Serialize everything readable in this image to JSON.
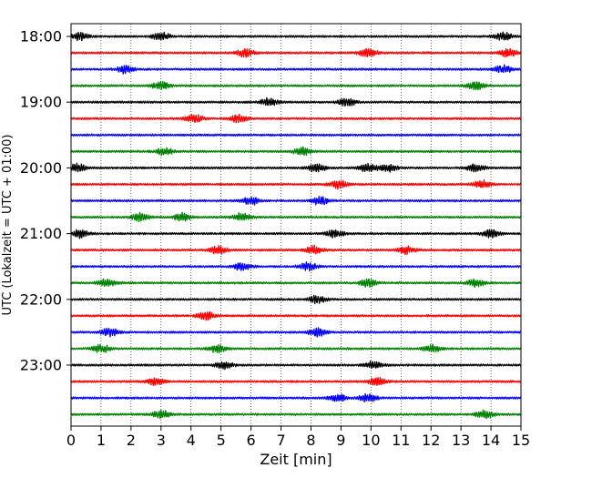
{
  "chart_data": {
    "type": "line",
    "chart_kind": "seismic helicorder (one trace per 15-minute line)",
    "xlabel": "Zeit  [min]",
    "ylabel": "UTC (Lokalzeit = UTC + 01:00)",
    "xlim": [
      0,
      15
    ],
    "x_ticks": [
      "0",
      "1",
      "2",
      "3",
      "4",
      "5",
      "6",
      "7",
      "8",
      "9",
      "10",
      "11",
      "12",
      "13",
      "14",
      "15"
    ],
    "y_tick_labels": [
      "18:00",
      "19:00",
      "20:00",
      "21:00",
      "22:00",
      "23:00"
    ],
    "trace_start_times": [
      "18:00",
      "18:15",
      "18:30",
      "18:45",
      "19:00",
      "19:15",
      "19:30",
      "19:45",
      "20:00",
      "20:15",
      "20:30",
      "20:45",
      "21:00",
      "21:15",
      "21:30",
      "21:45",
      "22:00",
      "22:15",
      "22:30",
      "22:45",
      "23:00",
      "23:15",
      "23:30",
      "23:45"
    ],
    "trace_color_cycle": [
      "#000000",
      "#ff0000",
      "#0000ff",
      "#008000"
    ],
    "vertical_grid": "dotted, every 1 min",
    "horizontal_grid": "none",
    "legend": "none",
    "notable_bursts": [
      {
        "trace": "18:00",
        "minutes": [
          0.3,
          3.0,
          14.4
        ]
      },
      {
        "trace": "18:15",
        "minutes": [
          5.8,
          9.9,
          14.6
        ]
      },
      {
        "trace": "18:30",
        "minutes": [
          1.8,
          14.4
        ]
      },
      {
        "trace": "18:45",
        "minutes": [
          3.0,
          13.5
        ]
      },
      {
        "trace": "19:00",
        "minutes": [
          6.6,
          9.2
        ]
      },
      {
        "trace": "19:15",
        "minutes": [
          4.1,
          5.6
        ]
      },
      {
        "trace": "19:45",
        "minutes": [
          3.1,
          7.7
        ]
      },
      {
        "trace": "20:00",
        "minutes": [
          0.2,
          8.2,
          9.9,
          10.6,
          13.5
        ]
      },
      {
        "trace": "20:15",
        "minutes": [
          8.9,
          13.7
        ]
      },
      {
        "trace": "20:30",
        "minutes": [
          6.0,
          8.3
        ]
      },
      {
        "trace": "20:45",
        "minutes": [
          2.3,
          3.7,
          5.7
        ]
      },
      {
        "trace": "21:00",
        "minutes": [
          0.3,
          8.8,
          14.0
        ]
      },
      {
        "trace": "21:15",
        "minutes": [
          4.9,
          8.1,
          11.2
        ]
      },
      {
        "trace": "21:30",
        "minutes": [
          5.7,
          7.9
        ]
      },
      {
        "trace": "21:45",
        "minutes": [
          1.2,
          9.9,
          13.5
        ]
      },
      {
        "trace": "22:00",
        "minutes": [
          8.2
        ]
      },
      {
        "trace": "22:15",
        "minutes": [
          4.5
        ]
      },
      {
        "trace": "22:30",
        "minutes": [
          1.3,
          8.2
        ]
      },
      {
        "trace": "22:45",
        "minutes": [
          1.0,
          4.9,
          12.0
        ]
      },
      {
        "trace": "23:00",
        "minutes": [
          5.1,
          10.1
        ]
      },
      {
        "trace": "23:15",
        "minutes": [
          2.8,
          10.2
        ]
      },
      {
        "trace": "23:30",
        "minutes": [
          8.9,
          9.9
        ]
      },
      {
        "trace": "23:45",
        "minutes": [
          3.0,
          13.8
        ]
      }
    ]
  }
}
